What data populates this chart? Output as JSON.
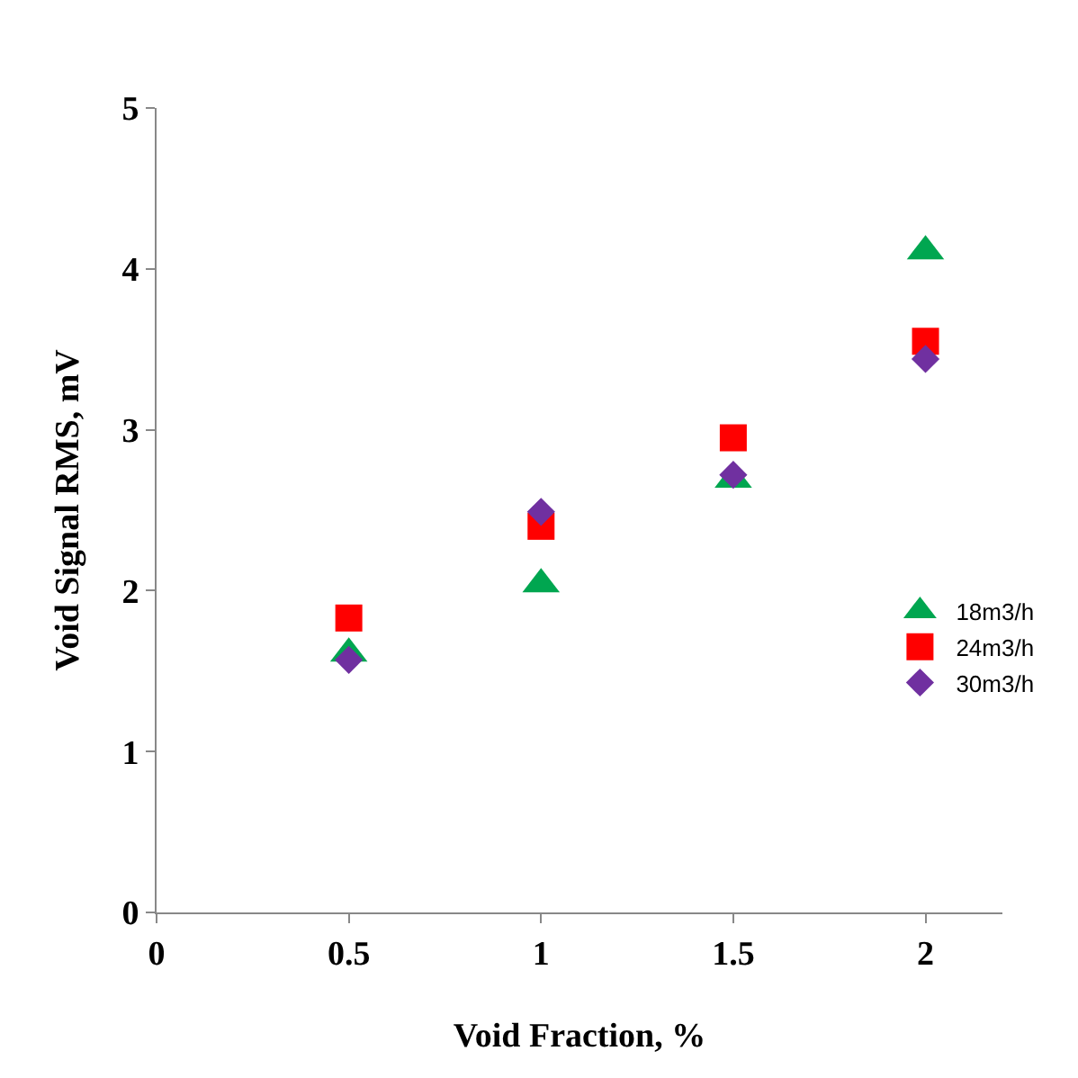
{
  "chart_data": {
    "type": "scatter",
    "xlabel": "Void Fraction, %",
    "ylabel": "Void Signal RMS, mV",
    "xlim": [
      0,
      2.2
    ],
    "xticks": [
      0,
      0.5,
      1,
      1.5,
      2
    ],
    "ylim": [
      0,
      5
    ],
    "yticks": [
      0,
      1,
      2,
      3,
      4,
      5
    ],
    "grid": false,
    "legend": "right",
    "series": [
      {
        "name": "18m3/h",
        "color": "#00a650",
        "marker": "triangle",
        "x": [
          0.5,
          1,
          1.5,
          2
        ],
        "values": [
          1.61,
          2.04,
          2.69,
          4.11
        ]
      },
      {
        "name": "24m3/h",
        "color": "#ff0000",
        "marker": "square",
        "x": [
          0.5,
          1,
          1.5,
          2
        ],
        "values": [
          1.83,
          2.4,
          2.95,
          3.55
        ]
      },
      {
        "name": "30m3/h",
        "color": "#7030a0",
        "marker": "diamond",
        "x": [
          0.5,
          1,
          1.5,
          2
        ],
        "values": [
          1.57,
          2.49,
          2.72,
          3.44
        ]
      }
    ]
  }
}
